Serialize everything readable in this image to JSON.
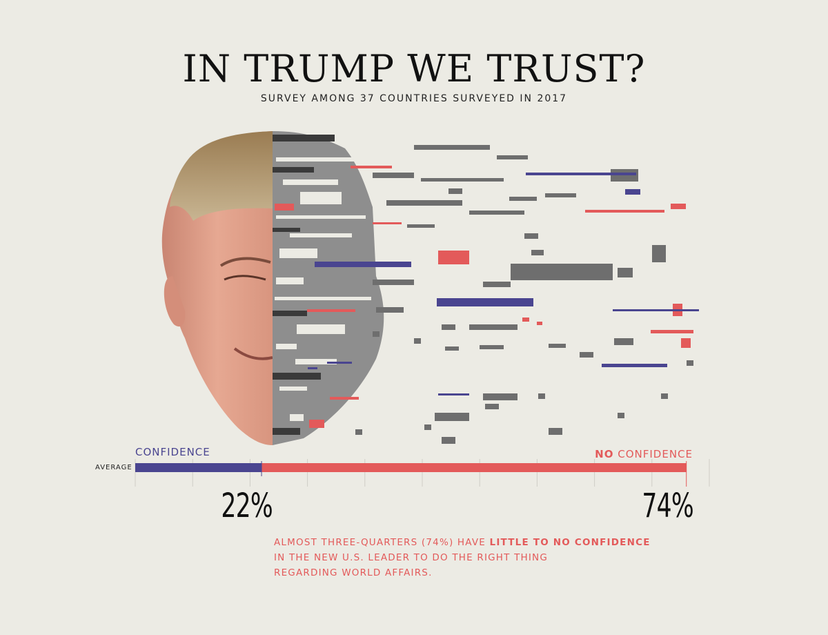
{
  "title": "IN TRUMP WE TRUST?",
  "subtitle": "SURVEY AMONG 37 COUNTRIES SURVEYED IN 2017",
  "colors": {
    "confidence": "#4a4590",
    "no_confidence": "#e35a5a",
    "background": "#ecebe4"
  },
  "chart_data": {
    "type": "bar",
    "orientation": "horizontal",
    "stacked": true,
    "categories": [
      "AVERAGE"
    ],
    "series": [
      {
        "name": "CONFIDENCE",
        "values": [
          22
        ]
      },
      {
        "name": "NO CONFIDENCE",
        "values": [
          74
        ]
      }
    ],
    "value_labels": [
      "22%",
      "74%"
    ],
    "xlim": [
      0,
      100
    ]
  },
  "legend": {
    "confidence": "CONFIDENCE",
    "no_prefix": "NO",
    "no_suffix": "CONFIDENCE"
  },
  "category_label": "AVERAGE",
  "note": {
    "line1_a": "ALMOST THREE-QUARTERS (74%) HAVE",
    "line1_b": "LITTLE TO NO CONFIDENCE",
    "line2": "IN THE NEW U.S. LEADER TO DO THE RIGHT THING",
    "line3": "REGARDING WORLD AFFAIRS."
  },
  "illustration": {
    "icon": "glitched-face-portrait-icon"
  }
}
